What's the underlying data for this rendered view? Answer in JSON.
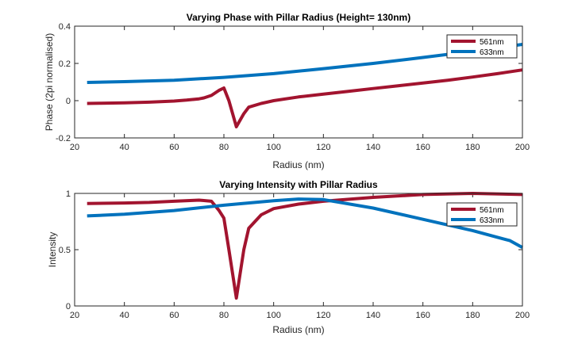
{
  "chart_data": [
    {
      "type": "line",
      "title": "Varying Phase with Pillar Radius (Height= 130nm)",
      "xlabel": "Radius (nm)",
      "ylabel": "Phase (2pi normalised)",
      "xlim": [
        20,
        200
      ],
      "ylim": [
        -0.2,
        0.4
      ],
      "xticks": [
        "20",
        "40",
        "60",
        "80",
        "100",
        "120",
        "140",
        "160",
        "180",
        "200"
      ],
      "yticks": [
        "-0.2",
        "0",
        "0.2",
        "0.4"
      ],
      "legend": "top-right",
      "series": [
        {
          "name": "561nm",
          "color": "#A2142F",
          "x": [
            25,
            30,
            40,
            50,
            60,
            65,
            70,
            72,
            75,
            78,
            80,
            82,
            85,
            88,
            90,
            95,
            100,
            110,
            120,
            130,
            140,
            150,
            160,
            170,
            180,
            190,
            200
          ],
          "y": [
            -0.015,
            -0.014,
            -0.012,
            -0.008,
            -0.002,
            0.003,
            0.01,
            0.015,
            0.028,
            0.055,
            0.068,
            0.0,
            -0.14,
            -0.07,
            -0.035,
            -0.015,
            0.0,
            0.02,
            0.035,
            0.05,
            0.065,
            0.08,
            0.095,
            0.11,
            0.127,
            0.145,
            0.165
          ]
        },
        {
          "name": "633nm",
          "color": "#0072BD",
          "x": [
            25,
            40,
            60,
            80,
            100,
            120,
            140,
            160,
            180,
            200
          ],
          "y": [
            0.098,
            0.102,
            0.11,
            0.125,
            0.145,
            0.172,
            0.2,
            0.232,
            0.265,
            0.302
          ]
        }
      ]
    },
    {
      "type": "line",
      "title": "Varying Intensity with Pillar Radius",
      "xlabel": "Radius (nm)",
      "ylabel": "Intensity",
      "xlim": [
        20,
        200
      ],
      "ylim": [
        0,
        1
      ],
      "xticks": [
        "20",
        "40",
        "60",
        "80",
        "100",
        "120",
        "140",
        "160",
        "180",
        "200"
      ],
      "yticks": [
        "0",
        "0.5",
        "1"
      ],
      "legend": "top-right",
      "series": [
        {
          "name": "561nm",
          "color": "#A2142F",
          "x": [
            25,
            40,
            50,
            60,
            70,
            75,
            78,
            80,
            82,
            85,
            88,
            90,
            95,
            100,
            110,
            120,
            140,
            160,
            180,
            200
          ],
          "y": [
            0.91,
            0.915,
            0.92,
            0.93,
            0.94,
            0.93,
            0.85,
            0.78,
            0.5,
            0.07,
            0.5,
            0.69,
            0.81,
            0.865,
            0.905,
            0.93,
            0.965,
            0.99,
            1.0,
            0.99
          ]
        },
        {
          "name": "633nm",
          "color": "#0072BD",
          "x": [
            25,
            40,
            60,
            80,
            100,
            110,
            120,
            140,
            160,
            180,
            190,
            195,
            200
          ],
          "y": [
            0.8,
            0.815,
            0.848,
            0.895,
            0.935,
            0.95,
            0.945,
            0.87,
            0.77,
            0.67,
            0.61,
            0.58,
            0.52
          ]
        }
      ]
    }
  ]
}
